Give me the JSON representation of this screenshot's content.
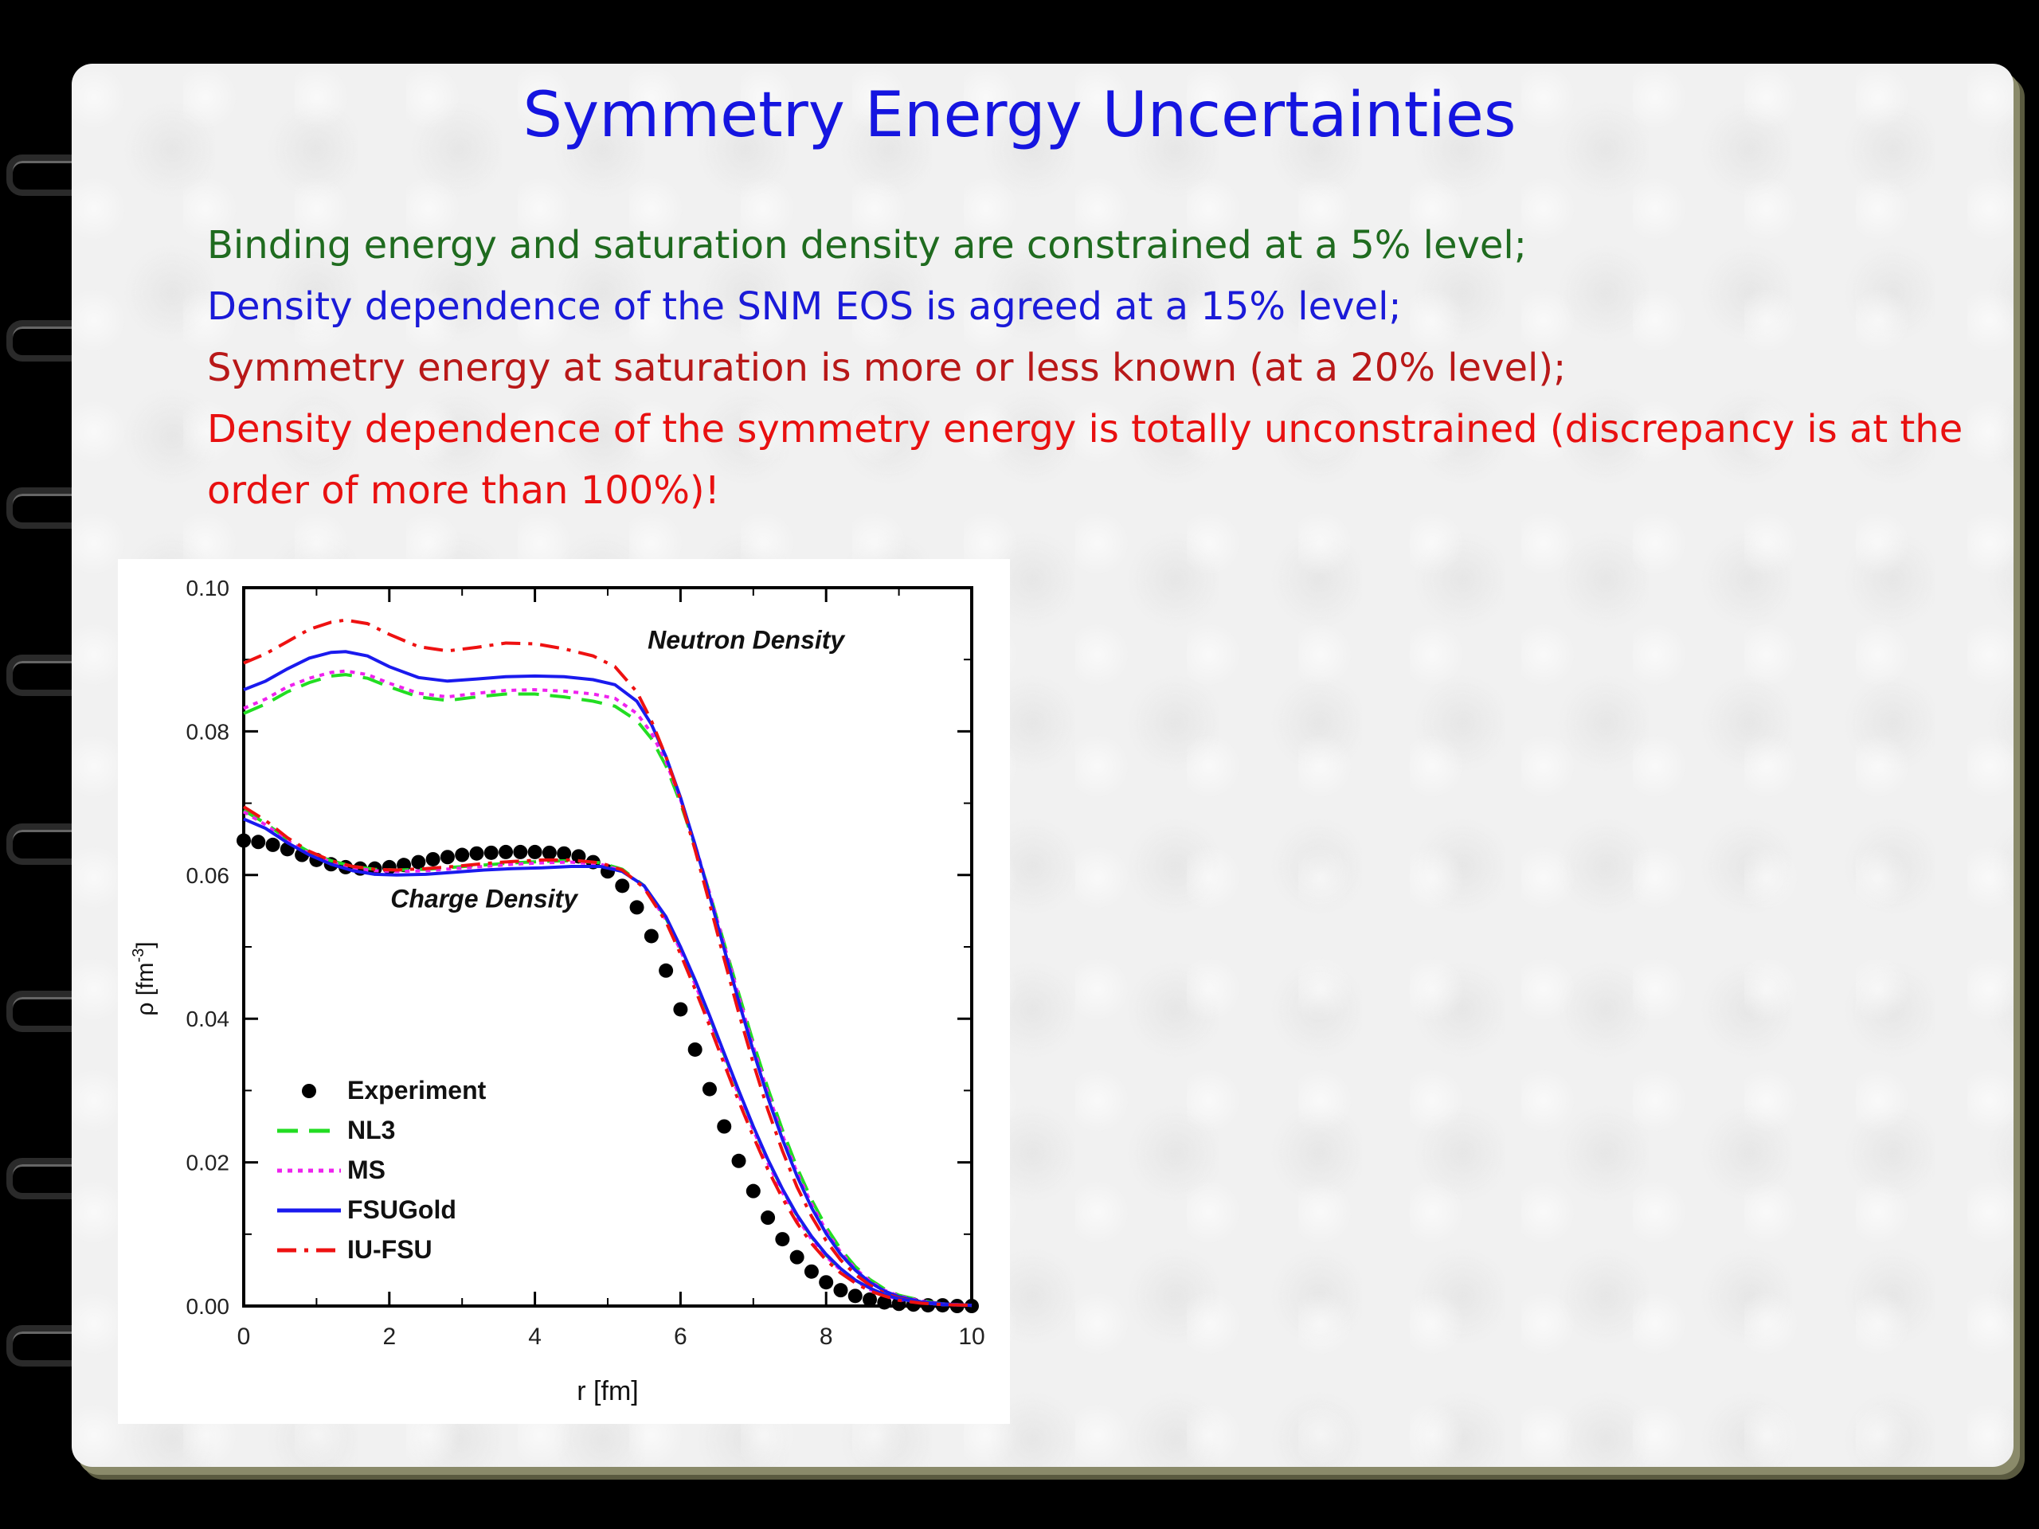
{
  "slide": {
    "title": "Symmetry Energy Uncertainties",
    "bullets": [
      {
        "text": "Binding energy and saturation density are constrained at a 5% level;",
        "color": "#1f6b1f"
      },
      {
        "text": "Density dependence of the SNM EOS is agreed at a 15% level;",
        "color": "#1a1ad8"
      },
      {
        "text": "Symmetry energy at saturation is more or less known (at a 20% level);",
        "color": "#b81818"
      },
      {
        "text": "Density dependence of the symmetry energy is totally unconstrained (discrepancy is at the order of more than 100%)!",
        "color": "#e81010"
      }
    ]
  },
  "chart_data": {
    "type": "line",
    "xlabel": "r [fm]",
    "ylabel": "ρ [fm",
    "ylabel_sup": "-3",
    "ylabel_end": "]",
    "xlim": [
      0,
      10
    ],
    "ylim": [
      0,
      0.1
    ],
    "xticks": [
      "0",
      "2",
      "4",
      "6",
      "8",
      "10"
    ],
    "yticks": [
      "0.00",
      "0.02",
      "0.04",
      "0.06",
      "0.08",
      "0.10"
    ],
    "annotations": [
      {
        "text": "Neutron Density",
        "x": 6.9,
        "y": 0.0915
      },
      {
        "text": "Charge Density",
        "x": 3.3,
        "y": 0.0555
      }
    ],
    "legend_position": "bottom-left",
    "series": [
      {
        "name": "Experiment",
        "style": "markers",
        "color": "#000000",
        "x": [
          0,
          0.2,
          0.4,
          0.6,
          0.8,
          1.0,
          1.2,
          1.4,
          1.6,
          1.8,
          2.0,
          2.2,
          2.4,
          2.6,
          2.8,
          3.0,
          3.2,
          3.4,
          3.6,
          3.8,
          4.0,
          4.2,
          4.4,
          4.6,
          4.8,
          5.0,
          5.2,
          5.4,
          5.6,
          5.8,
          6.0,
          6.2,
          6.4,
          6.6,
          6.8,
          7.0,
          7.2,
          7.4,
          7.6,
          7.8,
          8.0,
          8.2,
          8.4,
          8.6,
          8.8,
          9.0,
          9.2,
          9.4,
          9.6,
          9.8,
          10.0
        ],
        "y": [
          0.0648,
          0.0646,
          0.0642,
          0.0636,
          0.0628,
          0.0621,
          0.0615,
          0.0611,
          0.0609,
          0.0609,
          0.0611,
          0.0614,
          0.0618,
          0.0622,
          0.0625,
          0.0628,
          0.063,
          0.0631,
          0.0632,
          0.0632,
          0.0632,
          0.0631,
          0.063,
          0.0626,
          0.0618,
          0.0605,
          0.0585,
          0.0555,
          0.0515,
          0.0467,
          0.0413,
          0.0357,
          0.0302,
          0.025,
          0.0202,
          0.016,
          0.0123,
          0.0093,
          0.0068,
          0.0048,
          0.0033,
          0.0022,
          0.0014,
          0.0009,
          0.0005,
          0.0003,
          0.0002,
          0.0001,
          0.0001,
          0.0,
          0.0
        ]
      },
      {
        "name": "NL3",
        "style": "dashed",
        "color": "#22dd22",
        "x": [
          0,
          0.3,
          0.6,
          0.9,
          1.2,
          1.4,
          1.7,
          2.0,
          2.4,
          2.8,
          3.2,
          3.6,
          4.0,
          4.4,
          4.8,
          5.1,
          5.4,
          5.6,
          5.8,
          6.0,
          6.2,
          6.4,
          6.6,
          6.8,
          7.0,
          7.2,
          7.4,
          7.6,
          7.8,
          8.0,
          8.2,
          8.4,
          8.6,
          8.8,
          9.0,
          9.3,
          9.6,
          10.0
        ],
        "y": [
          0.0825,
          0.0838,
          0.0855,
          0.0868,
          0.0877,
          0.0879,
          0.0874,
          0.0862,
          0.0848,
          0.0843,
          0.0848,
          0.0852,
          0.0852,
          0.0848,
          0.0842,
          0.0835,
          0.0815,
          0.079,
          0.0752,
          0.07,
          0.064,
          0.0575,
          0.0505,
          0.0435,
          0.0367,
          0.0303,
          0.0245,
          0.0193,
          0.0148,
          0.011,
          0.0079,
          0.0055,
          0.0037,
          0.0024,
          0.0015,
          0.0008,
          0.0003,
          0.0001
        ]
      },
      {
        "name": "MS",
        "style": "dotted",
        "color": "#ee22ee",
        "x": [
          0,
          0.3,
          0.6,
          0.9,
          1.2,
          1.4,
          1.7,
          2.0,
          2.4,
          2.8,
          3.2,
          3.6,
          4.0,
          4.4,
          4.8,
          5.1,
          5.4,
          5.6,
          5.8,
          6.0,
          6.2,
          6.4,
          6.6,
          6.8,
          7.0,
          7.2,
          7.4,
          7.6,
          7.8,
          8.0,
          8.2,
          8.4,
          8.6,
          8.8,
          9.0,
          9.3,
          9.6,
          10.0
        ],
        "y": [
          0.0832,
          0.0845,
          0.0862,
          0.0874,
          0.0882,
          0.0884,
          0.0879,
          0.0867,
          0.0853,
          0.0848,
          0.0853,
          0.0857,
          0.0858,
          0.0856,
          0.0852,
          0.0846,
          0.0825,
          0.0798,
          0.0758,
          0.0705,
          0.0642,
          0.0575,
          0.0503,
          0.0431,
          0.0361,
          0.0297,
          0.0238,
          0.0186,
          0.0142,
          0.0105,
          0.0075,
          0.0052,
          0.0035,
          0.0022,
          0.0014,
          0.0007,
          0.0003,
          0.0001
        ]
      },
      {
        "name": "FSUGold",
        "style": "solid",
        "color": "#1a1aee",
        "x": [
          0,
          0.3,
          0.6,
          0.9,
          1.2,
          1.4,
          1.7,
          2.0,
          2.4,
          2.8,
          3.2,
          3.6,
          4.0,
          4.4,
          4.8,
          5.1,
          5.4,
          5.6,
          5.8,
          6.0,
          6.2,
          6.4,
          6.6,
          6.8,
          7.0,
          7.2,
          7.4,
          7.6,
          7.8,
          8.0,
          8.2,
          8.4,
          8.6,
          8.8,
          9.0,
          9.3,
          9.6,
          10.0
        ],
        "y": [
          0.0858,
          0.087,
          0.0887,
          0.0902,
          0.091,
          0.0911,
          0.0905,
          0.089,
          0.0875,
          0.087,
          0.0873,
          0.0876,
          0.0877,
          0.0876,
          0.0872,
          0.0865,
          0.0842,
          0.081,
          0.0765,
          0.0708,
          0.0642,
          0.0571,
          0.0497,
          0.0424,
          0.0355,
          0.029,
          0.0232,
          0.0181,
          0.0137,
          0.0101,
          0.0072,
          0.005,
          0.0033,
          0.0021,
          0.0013,
          0.0006,
          0.0003,
          0.0001
        ]
      },
      {
        "name": "IU-FSU",
        "style": "dashdot",
        "color": "#ee1111",
        "x": [
          0,
          0.3,
          0.6,
          0.9,
          1.2,
          1.4,
          1.7,
          2.0,
          2.4,
          2.8,
          3.2,
          3.6,
          4.0,
          4.4,
          4.8,
          5.1,
          5.4,
          5.6,
          5.8,
          6.0,
          6.2,
          6.4,
          6.6,
          6.8,
          7.0,
          7.2,
          7.4,
          7.6,
          7.8,
          8.0,
          8.2,
          8.4,
          8.6,
          8.8,
          9.0,
          9.3,
          9.6,
          10.0
        ],
        "y": [
          0.0895,
          0.0908,
          0.0925,
          0.0942,
          0.0952,
          0.0955,
          0.095,
          0.0935,
          0.0918,
          0.0912,
          0.0917,
          0.0923,
          0.0922,
          0.0915,
          0.0905,
          0.089,
          0.0855,
          0.0815,
          0.0765,
          0.0705,
          0.0635,
          0.056,
          0.0483,
          0.0408,
          0.0338,
          0.0273,
          0.0216,
          0.0166,
          0.0125,
          0.0091,
          0.0064,
          0.0044,
          0.0029,
          0.0018,
          0.0011,
          0.0005,
          0.0002,
          0.0001
        ]
      },
      {
        "name": "",
        "style": "dashed",
        "color": "#22dd22",
        "x": [
          0,
          0.3,
          0.6,
          0.9,
          1.2,
          1.5,
          1.8,
          2.1,
          2.5,
          2.9,
          3.3,
          3.7,
          4.1,
          4.5,
          4.9,
          5.2,
          5.5,
          5.8,
          6.0,
          6.2,
          6.4,
          6.6,
          6.8,
          7.0,
          7.2,
          7.4,
          7.6,
          7.8,
          8.0,
          8.2,
          8.4,
          8.6,
          8.8,
          9.0,
          9.3,
          9.6,
          10.0
        ],
        "y": [
          0.069,
          0.0672,
          0.065,
          0.0632,
          0.062,
          0.0612,
          0.0608,
          0.0607,
          0.0608,
          0.0611,
          0.0614,
          0.0617,
          0.0619,
          0.062,
          0.0617,
          0.0608,
          0.0585,
          0.054,
          0.0498,
          0.0452,
          0.0402,
          0.035,
          0.0298,
          0.0249,
          0.0203,
          0.0162,
          0.0126,
          0.0096,
          0.0071,
          0.0051,
          0.0036,
          0.0024,
          0.0016,
          0.001,
          0.0005,
          0.0002,
          0.0001
        ]
      },
      {
        "name": "",
        "style": "dotted",
        "color": "#ee22ee",
        "x": [
          0,
          0.3,
          0.6,
          0.9,
          1.2,
          1.5,
          1.8,
          2.1,
          2.5,
          2.9,
          3.3,
          3.7,
          4.1,
          4.5,
          4.9,
          5.2,
          5.5,
          5.8,
          6.0,
          6.2,
          6.4,
          6.6,
          6.8,
          7.0,
          7.2,
          7.4,
          7.6,
          7.8,
          8.0,
          8.2,
          8.4,
          8.6,
          8.8,
          9.0,
          9.3,
          9.6,
          10.0
        ],
        "y": [
          0.0688,
          0.067,
          0.0648,
          0.063,
          0.0618,
          0.061,
          0.0606,
          0.0605,
          0.0606,
          0.0609,
          0.0612,
          0.0615,
          0.0617,
          0.0618,
          0.0615,
          0.0606,
          0.0583,
          0.0538,
          0.0495,
          0.0448,
          0.0398,
          0.0346,
          0.0294,
          0.0245,
          0.0199,
          0.0158,
          0.0123,
          0.0093,
          0.0069,
          0.005,
          0.0035,
          0.0023,
          0.0015,
          0.0009,
          0.0005,
          0.0002,
          0.0001
        ]
      },
      {
        "name": "",
        "style": "solid",
        "color": "#1a1aee",
        "x": [
          0,
          0.3,
          0.6,
          0.9,
          1.2,
          1.5,
          1.8,
          2.1,
          2.5,
          2.9,
          3.3,
          3.7,
          4.1,
          4.5,
          4.9,
          5.2,
          5.5,
          5.8,
          6.0,
          6.2,
          6.4,
          6.6,
          6.8,
          7.0,
          7.2,
          7.4,
          7.6,
          7.8,
          8.0,
          8.2,
          8.4,
          8.6,
          8.8,
          9.0,
          9.3,
          9.6,
          10.0
        ],
        "y": [
          0.0678,
          0.0665,
          0.0645,
          0.0628,
          0.0615,
          0.0606,
          0.0601,
          0.06,
          0.0601,
          0.0604,
          0.0607,
          0.0609,
          0.061,
          0.0612,
          0.0612,
          0.0605,
          0.0585,
          0.0542,
          0.05,
          0.0454,
          0.0404,
          0.0352,
          0.03,
          0.025,
          0.0204,
          0.0163,
          0.0127,
          0.0097,
          0.0072,
          0.0052,
          0.0036,
          0.0025,
          0.0016,
          0.001,
          0.0005,
          0.0002,
          0.0001
        ]
      },
      {
        "name": "",
        "style": "dashdot",
        "color": "#ee1111",
        "x": [
          0,
          0.3,
          0.6,
          0.9,
          1.2,
          1.5,
          1.8,
          2.1,
          2.5,
          2.9,
          3.3,
          3.7,
          4.1,
          4.5,
          4.9,
          5.2,
          5.5,
          5.8,
          6.0,
          6.2,
          6.4,
          6.6,
          6.8,
          7.0,
          7.2,
          7.4,
          7.6,
          7.8,
          8.0,
          8.2,
          8.4,
          8.6,
          8.8,
          9.0,
          9.3,
          9.6,
          10.0
        ],
        "y": [
          0.0695,
          0.0676,
          0.0652,
          0.0633,
          0.062,
          0.0612,
          0.0608,
          0.0607,
          0.0609,
          0.0612,
          0.0616,
          0.0619,
          0.0621,
          0.0621,
          0.0617,
          0.0607,
          0.0582,
          0.0535,
          0.049,
          0.0441,
          0.039,
          0.0337,
          0.0285,
          0.0236,
          0.019,
          0.015,
          0.0116,
          0.0087,
          0.0064,
          0.0046,
          0.0032,
          0.0021,
          0.0014,
          0.0008,
          0.0004,
          0.0002,
          0.0001
        ]
      }
    ]
  }
}
